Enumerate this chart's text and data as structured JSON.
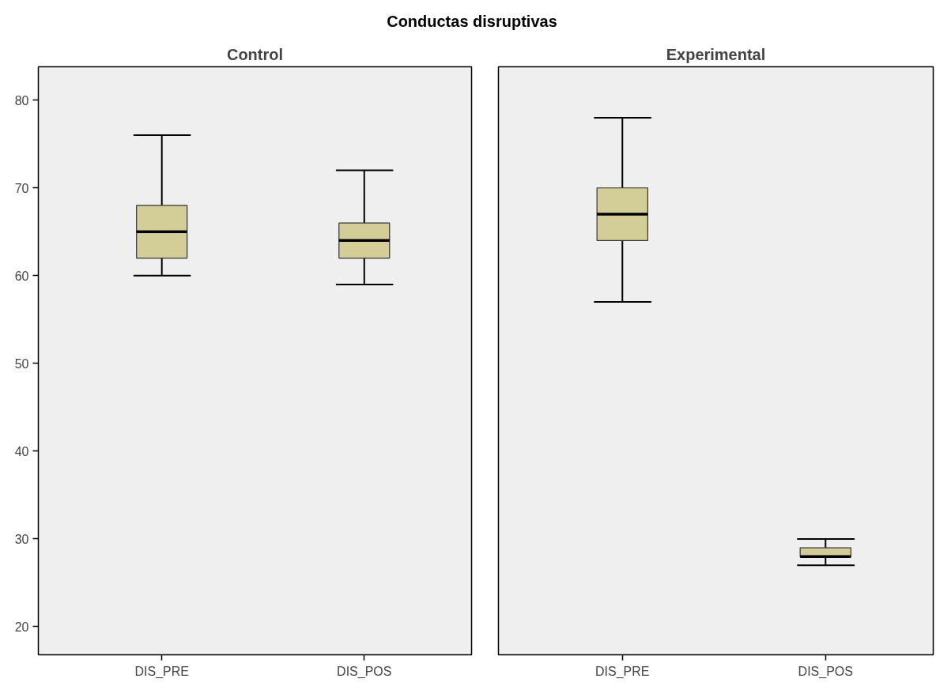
{
  "chart_data": [
    {
      "type": "box",
      "title": "Control",
      "annotations": [
        "Conductas disruptivas"
      ],
      "categories": [
        "DIS_PRE",
        "DIS_POS"
      ],
      "color": "#d3ce97",
      "boxes": [
        {
          "low": 60,
          "q1": 62,
          "median": 65,
          "q3": 68,
          "high": 76
        },
        {
          "low": 59,
          "q1": 62,
          "median": 64,
          "q3": 66,
          "high": 72
        }
      ],
      "ylim": [
        16.8,
        83.8
      ],
      "yticks": [
        20,
        30,
        40,
        50,
        60,
        70,
        80
      ],
      "grid": false
    },
    {
      "type": "box",
      "title": "Experimental",
      "categories": [
        "DIS_PRE",
        "DIS_POS"
      ],
      "color": "#d3ce97",
      "boxes": [
        {
          "low": 57,
          "q1": 64,
          "median": 67,
          "q3": 70,
          "high": 78
        },
        {
          "low": 27,
          "q1": 28,
          "median": 28,
          "q3": 29,
          "high": 30
        }
      ],
      "ylim": [
        16.8,
        83.8
      ],
      "yticks": [
        20,
        30,
        40,
        50,
        60,
        70,
        80
      ],
      "grid": false,
      "tick_labels": "x"
    }
  ]
}
